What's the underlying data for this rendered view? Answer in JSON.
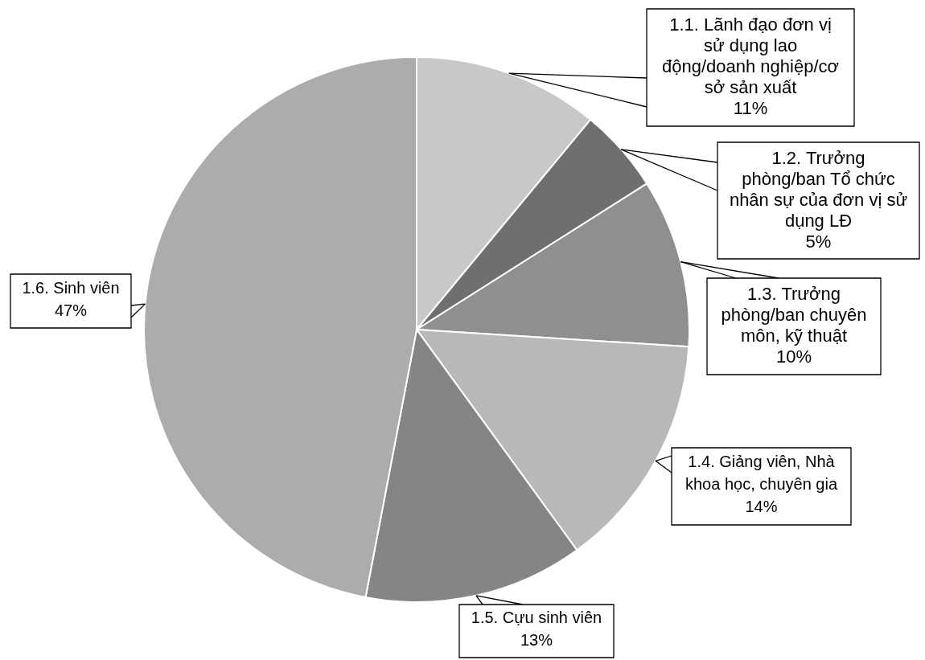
{
  "chart_data": {
    "type": "pie",
    "categories": [
      "1.1. Lãnh đạo đơn vị sử dụng lao động/doanh nghiệp/cơ sở sản xuất",
      "1.2. Trưởng phòng/ban Tổ chức nhân sự của đơn vị sử dụng LĐ",
      "1.3. Trưởng phòng/ban chuyên môn, kỹ thuật",
      "1.4. Giảng viên, Nhà khoa học, chuyên gia",
      "1.5. Cựu sinh viên",
      "1.6. Sinh viên"
    ],
    "values": [
      11,
      5,
      10,
      14,
      13,
      47
    ],
    "value_labels": [
      "11%",
      "5%",
      "10%",
      "14%",
      "13%",
      "47%"
    ],
    "colors": [
      "#c8c8c8",
      "#6f6f6f",
      "#8f8f8f",
      "#b8b8b8",
      "#858585",
      "#acacac"
    ]
  }
}
